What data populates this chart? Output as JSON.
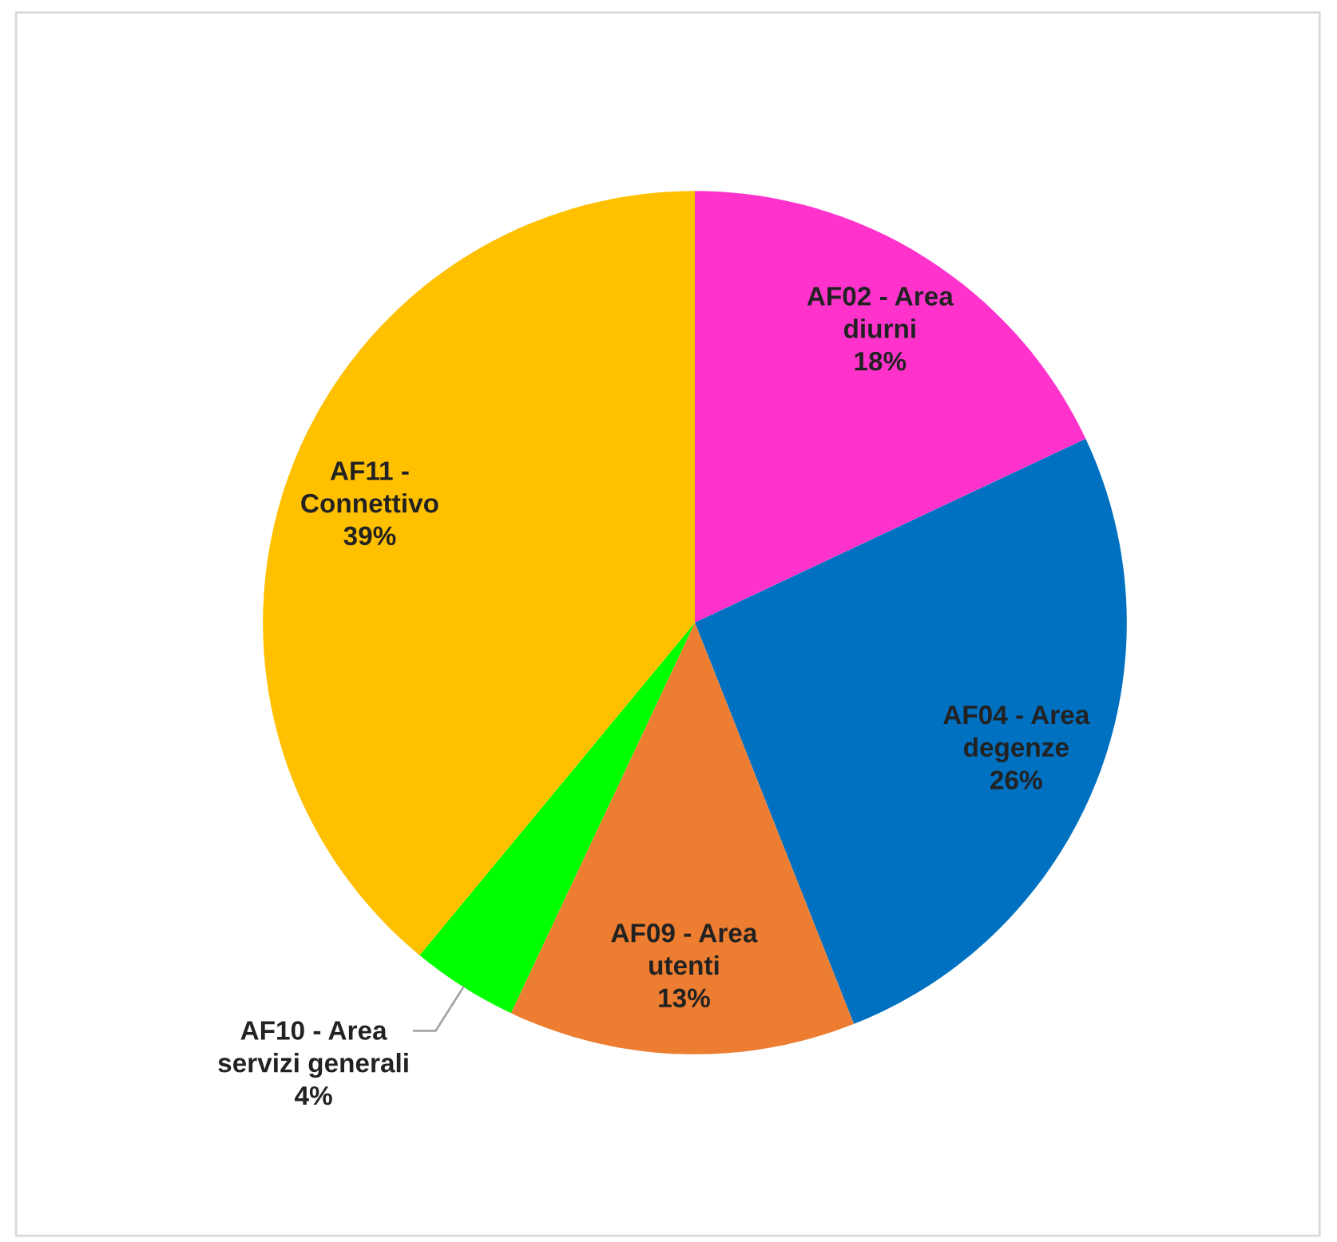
{
  "chart_data": {
    "type": "pie",
    "categories": [
      "AF02 - Area\ndiurni",
      "AF04 - Area\ndegenze",
      "AF09 - Area\nutenti",
      "AF10 - Area\nservizi generali",
      "AF11 -\nConnettivo"
    ],
    "values": [
      18,
      26,
      13,
      4,
      39
    ],
    "colors": [
      "#ff33cc",
      "#0070c0",
      "#ed7d31",
      "#00ff00",
      "#ffc000"
    ],
    "value_labels": [
      "18%",
      "26%",
      "13%",
      "4%",
      "39%"
    ]
  }
}
